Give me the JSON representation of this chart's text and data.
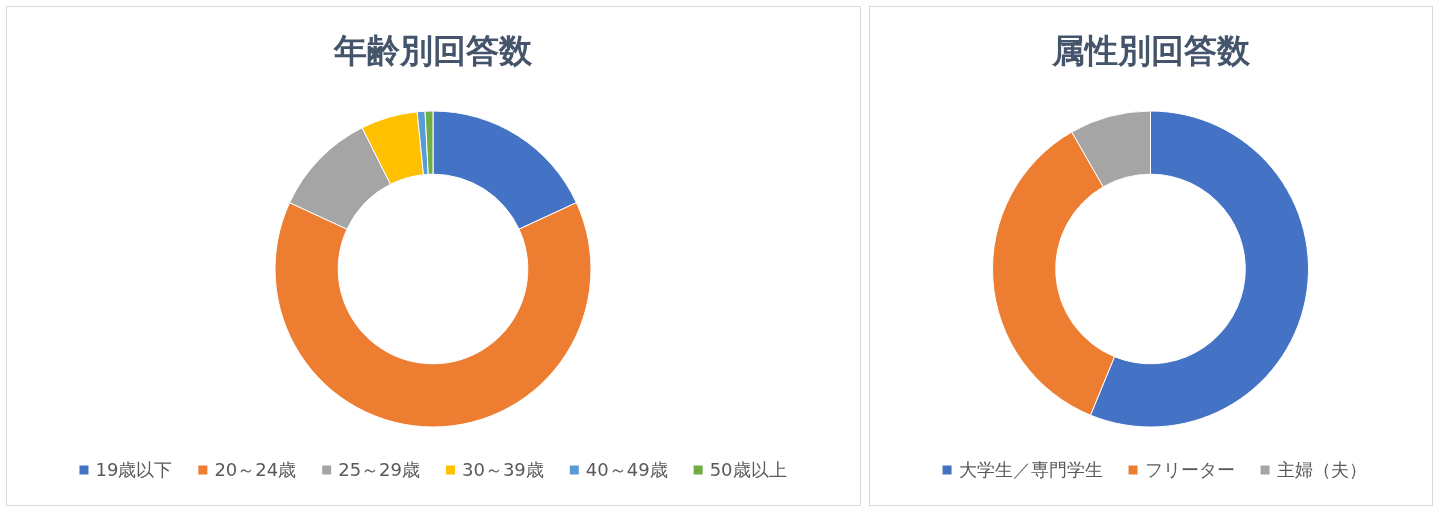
{
  "chart_data": [
    {
      "type": "donut",
      "title": "年齢別回答数",
      "categories": [
        "19歳以下",
        "20～24歳",
        "25～29歳",
        "30～39歳",
        "40～49歳",
        "50歳以上"
      ],
      "values": [
        18.1,
        63.8,
        10.7,
        5.8,
        0.8,
        0.8
      ],
      "colors": [
        "#4472c4",
        "#ed7d31",
        "#a5a5a5",
        "#ffc000",
        "#5b9bd5",
        "#70ad47"
      ],
      "legend": "bottom"
    },
    {
      "type": "donut",
      "title": "属性別回答数",
      "categories": [
        "大学生／専門学生",
        "フリーター",
        "主婦（夫）"
      ],
      "values": [
        56.2,
        35.5,
        8.3
      ],
      "colors": [
        "#4472c4",
        "#ed7d31",
        "#a5a5a5"
      ],
      "legend": "bottom"
    }
  ]
}
